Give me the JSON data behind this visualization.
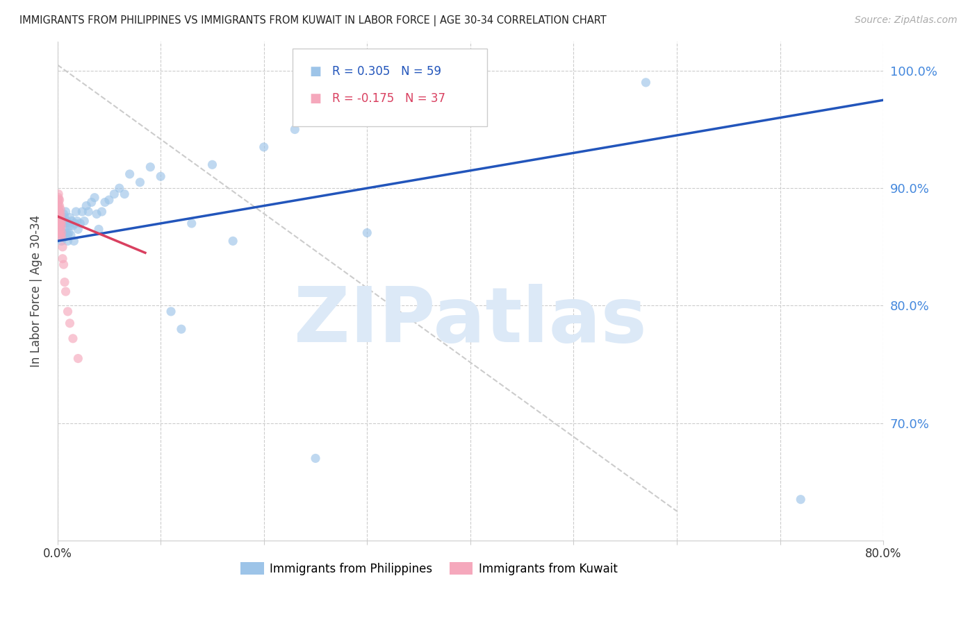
{
  "title": "IMMIGRANTS FROM PHILIPPINES VS IMMIGRANTS FROM KUWAIT IN LABOR FORCE | AGE 30-34 CORRELATION CHART",
  "source_text": "Source: ZipAtlas.com",
  "ylabel": "In Labor Force | Age 30-34",
  "xlim": [
    0.0,
    0.8
  ],
  "ylim": [
    0.6,
    1.025
  ],
  "ytick_vals": [
    0.7,
    0.8,
    0.9,
    1.0
  ],
  "ytick_labels": [
    "70.0%",
    "80.0%",
    "90.0%",
    "100.0%"
  ],
  "right_ytick_color": "#4488dd",
  "grid_color": "#cccccc",
  "background_color": "#ffffff",
  "watermark_text": "ZIPatlas",
  "watermark_color": "#dce9f7",
  "legend_r1": "R = 0.305",
  "legend_n1": "N = 59",
  "legend_r2": "R = -0.175",
  "legend_n2": "N = 37",
  "blue_color": "#9dc4e8",
  "pink_color": "#f5a8bc",
  "blue_line_color": "#2255bb",
  "pink_line_color": "#d94060",
  "scatter_alpha": 0.65,
  "scatter_size": 90,
  "philippines_x": [
    0.001,
    0.002,
    0.003,
    0.004,
    0.004,
    0.005,
    0.005,
    0.006,
    0.006,
    0.007,
    0.007,
    0.008,
    0.008,
    0.009,
    0.009,
    0.01,
    0.01,
    0.011,
    0.011,
    0.012,
    0.012,
    0.013,
    0.014,
    0.015,
    0.016,
    0.017,
    0.018,
    0.019,
    0.02,
    0.022,
    0.024,
    0.026,
    0.028,
    0.03,
    0.033,
    0.036,
    0.038,
    0.04,
    0.043,
    0.046,
    0.05,
    0.055,
    0.06,
    0.065,
    0.07,
    0.08,
    0.09,
    0.1,
    0.11,
    0.12,
    0.13,
    0.15,
    0.17,
    0.2,
    0.23,
    0.25,
    0.3,
    0.57,
    0.72
  ],
  "philippines_y": [
    0.86,
    0.87,
    0.868,
    0.855,
    0.875,
    0.862,
    0.87,
    0.858,
    0.878,
    0.865,
    0.875,
    0.87,
    0.88,
    0.862,
    0.872,
    0.86,
    0.855,
    0.87,
    0.862,
    0.868,
    0.875,
    0.86,
    0.872,
    0.868,
    0.855,
    0.87,
    0.88,
    0.872,
    0.865,
    0.87,
    0.88,
    0.872,
    0.885,
    0.88,
    0.888,
    0.892,
    0.878,
    0.865,
    0.88,
    0.888,
    0.89,
    0.895,
    0.9,
    0.895,
    0.912,
    0.905,
    0.918,
    0.91,
    0.795,
    0.78,
    0.87,
    0.92,
    0.855,
    0.935,
    0.95,
    0.67,
    0.862,
    0.99,
    0.635
  ],
  "kuwait_x": [
    0.001,
    0.001,
    0.001,
    0.001,
    0.001,
    0.001,
    0.001,
    0.001,
    0.001,
    0.001,
    0.001,
    0.002,
    0.002,
    0.002,
    0.002,
    0.002,
    0.002,
    0.002,
    0.003,
    0.003,
    0.003,
    0.003,
    0.003,
    0.003,
    0.004,
    0.004,
    0.004,
    0.004,
    0.005,
    0.005,
    0.006,
    0.007,
    0.008,
    0.01,
    0.012,
    0.015,
    0.02
  ],
  "kuwait_y": [
    0.87,
    0.875,
    0.88,
    0.882,
    0.885,
    0.888,
    0.89,
    0.862,
    0.868,
    0.892,
    0.895,
    0.87,
    0.875,
    0.88,
    0.885,
    0.89,
    0.862,
    0.868,
    0.86,
    0.865,
    0.87,
    0.875,
    0.878,
    0.882,
    0.858,
    0.862,
    0.868,
    0.872,
    0.84,
    0.85,
    0.835,
    0.82,
    0.812,
    0.795,
    0.785,
    0.772,
    0.755
  ],
  "blue_trend_x0": 0.0,
  "blue_trend_x1": 0.8,
  "blue_trend_y0": 0.855,
  "blue_trend_y1": 0.975,
  "pink_trend_x0": 0.0,
  "pink_trend_x1": 0.085,
  "pink_trend_y0": 0.876,
  "pink_trend_y1": 0.845,
  "diag_line_x0": 0.0,
  "diag_line_x1": 0.6,
  "diag_line_y0": 1.005,
  "diag_line_y1": 0.625
}
